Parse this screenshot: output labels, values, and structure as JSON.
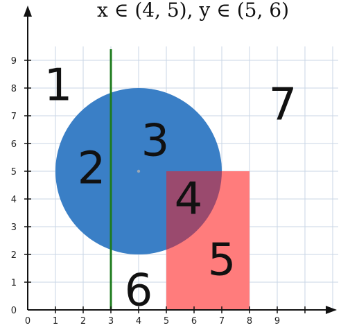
{
  "header_text": "x ∈ (4, 5), y ∈ (5, 6)",
  "x_ticks": [
    "0",
    "1",
    "2",
    "3",
    "4",
    "5",
    "6",
    "7",
    "8",
    "9"
  ],
  "y_ticks": [
    "0",
    "1",
    "2",
    "3",
    "4",
    "5",
    "6",
    "7",
    "8",
    "9"
  ],
  "circle": {
    "cx": 4,
    "cy": 5,
    "r": 3,
    "color": "#3A7FC6"
  },
  "rectangle": {
    "x1": 5,
    "x2": 8,
    "y1": 0,
    "y2": 5,
    "color": "#FF7C7C",
    "overlap_color": "#9A4A6E"
  },
  "vertical_line": {
    "x": 3,
    "color": "#1E7B1E"
  },
  "regions": [
    {
      "label": "1",
      "x": 1.1,
      "y": 8.0
    },
    {
      "label": "2",
      "x": 2.3,
      "y": 5.0
    },
    {
      "label": "3",
      "x": 4.6,
      "y": 6.0
    },
    {
      "label": "4",
      "x": 5.8,
      "y": 3.9
    },
    {
      "label": "5",
      "x": 7.0,
      "y": 1.7
    },
    {
      "label": "6",
      "x": 4.0,
      "y": 0.6
    },
    {
      "label": "7",
      "x": 9.2,
      "y": 7.3
    }
  ]
}
